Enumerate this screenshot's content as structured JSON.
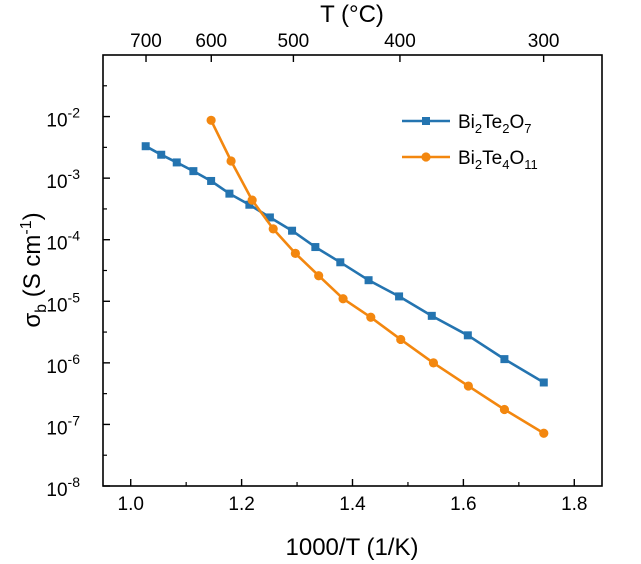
{
  "chart_data": {
    "type": "line",
    "x_scale": "linear",
    "y_scale": "log",
    "xlim": [
      0.95,
      1.85
    ],
    "ylim": [
      1e-08,
      0.1
    ],
    "xlabel": "1000/T (1/K)",
    "ylabel": {
      "main": "σ",
      "sub": "b",
      "rest": " (S cm",
      "sup": "-1",
      "close": ")"
    },
    "top_axis": {
      "label": "T (°C)",
      "ticks": [
        "700",
        "600",
        "500",
        "400",
        "300"
      ],
      "tick_celsius": [
        700,
        600,
        500,
        400,
        300
      ]
    },
    "x_ticks": [
      "1.0",
      "1.2",
      "1.4",
      "1.6",
      "1.8"
    ],
    "x_tick_values": [
      1.0,
      1.2,
      1.4,
      1.6,
      1.8
    ],
    "y_ticks": [
      {
        "base": "10",
        "exp": "-8"
      },
      {
        "base": "10",
        "exp": "-7"
      },
      {
        "base": "10",
        "exp": "-6"
      },
      {
        "base": "10",
        "exp": "-5"
      },
      {
        "base": "10",
        "exp": "-4"
      },
      {
        "base": "10",
        "exp": "-3"
      },
      {
        "base": "10",
        "exp": "-2"
      }
    ],
    "y_tick_values": [
      1e-08,
      1e-07,
      1e-06,
      1e-05,
      0.0001,
      0.001,
      0.01
    ],
    "grid": false,
    "legend_position": "top-right",
    "series": [
      {
        "name": "Bi2Te2O7",
        "name_parts": [
          [
            "Bi",
            ""
          ],
          [
            "2",
            "sub"
          ],
          [
            "Te",
            ""
          ],
          [
            "2",
            "sub"
          ],
          [
            "O",
            ""
          ],
          [
            "7",
            "sub"
          ]
        ],
        "color": "#2474b0",
        "marker": "square",
        "x": [
          1.027,
          1.055,
          1.083,
          1.113,
          1.145,
          1.178,
          1.214,
          1.251,
          1.291,
          1.333,
          1.378,
          1.429,
          1.484,
          1.543,
          1.608,
          1.674,
          1.745
        ],
        "y": [
          0.0033,
          0.0024,
          0.0018,
          0.0013,
          0.0009,
          0.00056,
          0.00037,
          0.00023,
          0.00014,
          7.6e-05,
          4.3e-05,
          2.2e-05,
          1.2e-05,
          5.8e-06,
          2.8e-06,
          1.15e-06,
          4.8e-07
        ]
      },
      {
        "name": "Bi2Te4O11",
        "name_parts": [
          [
            "Bi",
            ""
          ],
          [
            "2",
            "sub"
          ],
          [
            "Te",
            ""
          ],
          [
            "4",
            "sub"
          ],
          [
            "O",
            ""
          ],
          [
            "11",
            "sub"
          ]
        ],
        "color": "#f3870f",
        "marker": "circle",
        "x": [
          1.145,
          1.181,
          1.219,
          1.257,
          1.297,
          1.339,
          1.383,
          1.433,
          1.487,
          1.546,
          1.609,
          1.674,
          1.745
        ],
        "y": [
          0.0087,
          0.0019,
          0.00044,
          0.00015,
          6e-05,
          2.6e-05,
          1.1e-05,
          5.5e-06,
          2.4e-06,
          1e-06,
          4.2e-07,
          1.75e-07,
          7.2e-08
        ]
      }
    ]
  }
}
